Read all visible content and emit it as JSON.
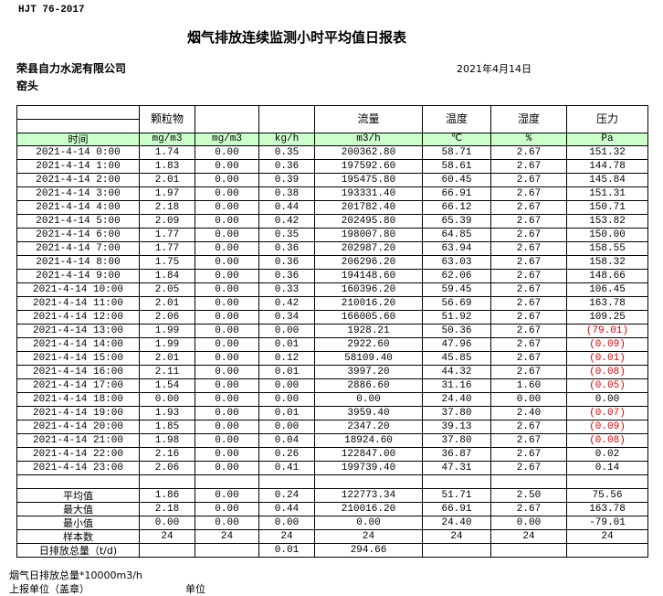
{
  "header": {
    "standard": "HJT  76-2017",
    "title": "烟气排放连续监测小时平均值日报表",
    "company": "荣县自力水泥有限公司",
    "date": "2021年4月14日",
    "section": "窑头"
  },
  "table": {
    "columns": [
      "",
      "颗粒物",
      "",
      "",
      "流量",
      "温度",
      "湿度",
      "压力"
    ],
    "units": [
      "时间",
      "mg/m3",
      "mg/m3",
      "kg/h",
      "m3/h",
      "℃",
      "%",
      "Pa"
    ],
    "negative_color": "#e00000",
    "header_bg": "#ccffcc",
    "rows": [
      [
        "2021-4-14 0:00",
        "1.74",
        "0.00",
        "0.35",
        "200362.80",
        "58.71",
        "2.67",
        "151.32"
      ],
      [
        "2021-4-14 1:00",
        "1.83",
        "0.00",
        "0.36",
        "197592.60",
        "58.61",
        "2.67",
        "144.78"
      ],
      [
        "2021-4-14 2:00",
        "2.01",
        "0.00",
        "0.39",
        "195475.80",
        "60.45",
        "2.67",
        "145.84"
      ],
      [
        "2021-4-14 3:00",
        "1.97",
        "0.00",
        "0.38",
        "193331.40",
        "66.91",
        "2.67",
        "151.31"
      ],
      [
        "2021-4-14 4:00",
        "2.18",
        "0.00",
        "0.44",
        "201782.40",
        "66.12",
        "2.67",
        "150.71"
      ],
      [
        "2021-4-14 5:00",
        "2.09",
        "0.00",
        "0.42",
        "202495.80",
        "65.39",
        "2.67",
        "153.82"
      ],
      [
        "2021-4-14 6:00",
        "1.77",
        "0.00",
        "0.35",
        "198007.80",
        "64.85",
        "2.67",
        "150.00"
      ],
      [
        "2021-4-14 7:00",
        "1.77",
        "0.00",
        "0.36",
        "202987.20",
        "63.94",
        "2.67",
        "158.55"
      ],
      [
        "2021-4-14 8:00",
        "1.75",
        "0.00",
        "0.36",
        "206296.20",
        "63.03",
        "2.67",
        "158.32"
      ],
      [
        "2021-4-14 9:00",
        "1.84",
        "0.00",
        "0.36",
        "194148.60",
        "62.06",
        "2.67",
        "148.66"
      ],
      [
        "2021-4-14 10:00",
        "2.05",
        "0.00",
        "0.33",
        "160396.20",
        "59.45",
        "2.67",
        "106.45"
      ],
      [
        "2021-4-14 11:00",
        "2.01",
        "0.00",
        "0.42",
        "210016.20",
        "56.69",
        "2.67",
        "163.78"
      ],
      [
        "2021-4-14 12:00",
        "2.06",
        "0.00",
        "0.34",
        "166005.60",
        "51.92",
        "2.67",
        "109.25"
      ],
      [
        "2021-4-14 13:00",
        "1.99",
        "0.00",
        "0.00",
        "1928.21",
        "50.36",
        "2.67",
        "(79.01)"
      ],
      [
        "2021-4-14 14:00",
        "1.99",
        "0.00",
        "0.01",
        "2922.60",
        "47.96",
        "2.67",
        "(0.09)"
      ],
      [
        "2021-4-14 15:00",
        "2.01",
        "0.00",
        "0.12",
        "58109.40",
        "45.85",
        "2.67",
        "(0.01)"
      ],
      [
        "2021-4-14 16:00",
        "2.11",
        "0.00",
        "0.01",
        "3997.20",
        "44.32",
        "2.67",
        "(0.08)"
      ],
      [
        "2021-4-14 17:00",
        "1.54",
        "0.00",
        "0.00",
        "2886.60",
        "31.16",
        "1.60",
        "(0.05)"
      ],
      [
        "2021-4-14 18:00",
        "0.00",
        "0.00",
        "0.00",
        "0.00",
        "24.40",
        "0.00",
        "0.00"
      ],
      [
        "2021-4-14 19:00",
        "1.93",
        "0.00",
        "0.01",
        "3959.40",
        "37.80",
        "2.40",
        "(0.07)"
      ],
      [
        "2021-4-14 20:00",
        "1.85",
        "0.00",
        "0.00",
        "2347.20",
        "39.13",
        "2.67",
        "(0.09)"
      ],
      [
        "2021-4-14 21:00",
        "1.98",
        "0.00",
        "0.04",
        "18924.60",
        "37.80",
        "2.67",
        "(0.08)"
      ],
      [
        "2021-4-14 22:00",
        "2.16",
        "0.00",
        "0.26",
        "122847.00",
        "36.87",
        "2.67",
        "0.02"
      ],
      [
        "2021-4-14 23:00",
        "2.06",
        "0.00",
        "0.41",
        "199739.40",
        "47.31",
        "2.67",
        "0.14"
      ]
    ],
    "summary": [
      [
        "平均值",
        "1.86",
        "0.00",
        "0.24",
        "122773.34",
        "51.71",
        "2.50",
        "75.56"
      ],
      [
        "最大值",
        "2.18",
        "0.00",
        "0.44",
        "210016.20",
        "66.91",
        "2.67",
        "163.78"
      ],
      [
        "最小值",
        "0.00",
        "0.00",
        "0.00",
        "0.00",
        "24.40",
        "0.00",
        "-79.01"
      ],
      [
        "样本数",
        "24",
        "24",
        "24",
        "24",
        "24",
        "24",
        "24"
      ],
      [
        "日排放总量（t/d)",
        "",
        "",
        "0.01",
        "294.66",
        "",
        "",
        ""
      ]
    ]
  },
  "footer": {
    "note": "烟气日排放总量*10000m3/h",
    "reporter": "上报单位（盖章）",
    "unit": "单位"
  }
}
